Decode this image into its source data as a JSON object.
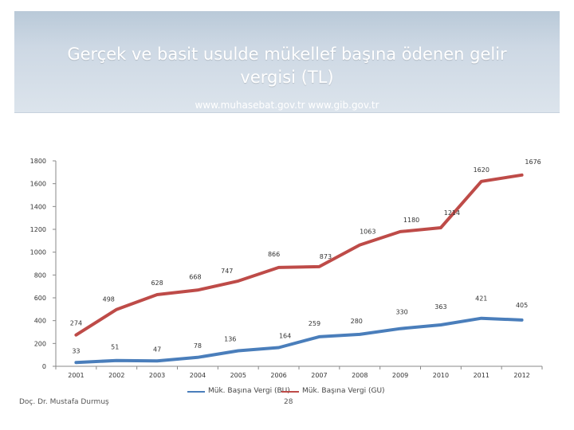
{
  "header": {
    "title": "Gerçek ve basit usulde mükellef başına ödenen gelir vergisi (TL)",
    "subtitle": "www.muhasebat.gov.tr www.gib.gov.tr"
  },
  "footer": {
    "author": "Doç. Dr. Mustafa Durmuş",
    "page": "28"
  },
  "colors": {
    "bu_series": "#4a7ebb",
    "gu_series": "#be4b48",
    "axis": "#888888",
    "header_bg": "#c8d4e0"
  },
  "chart_data": {
    "type": "line",
    "title": "",
    "xlabel": "",
    "ylabel": "",
    "categories": [
      "2001",
      "2002",
      "2003",
      "2004",
      "2005",
      "2006",
      "2007",
      "2008",
      "2009",
      "2010",
      "2011",
      "2012"
    ],
    "ylim": [
      0,
      1800
    ],
    "yticks": [
      0,
      200,
      400,
      600,
      800,
      1000,
      1200,
      1400,
      1600,
      1800
    ],
    "grid": false,
    "legend_position": "bottom",
    "series": [
      {
        "name": "Mük. Başına Vergi (BU)",
        "color": "#4a7ebb",
        "values": [
          33,
          51,
          47,
          78,
          136,
          164,
          259,
          280,
          330,
          363,
          421,
          405
        ],
        "labels": [
          "33",
          "51",
          "47",
          "78",
          "136",
          "164",
          "259",
          "280",
          "330",
          "363",
          "421",
          "405"
        ]
      },
      {
        "name": "Mük. Başına Vergi (GU)",
        "color": "#be4b48",
        "values": [
          274,
          498,
          628,
          668,
          747,
          866,
          873,
          1063,
          1180,
          1214,
          1620,
          1676
        ],
        "labels": [
          "274",
          "498",
          "628",
          "668",
          "747",
          "866",
          "873",
          "1063",
          "1180",
          "1214",
          "1620",
          "1676"
        ]
      }
    ]
  }
}
